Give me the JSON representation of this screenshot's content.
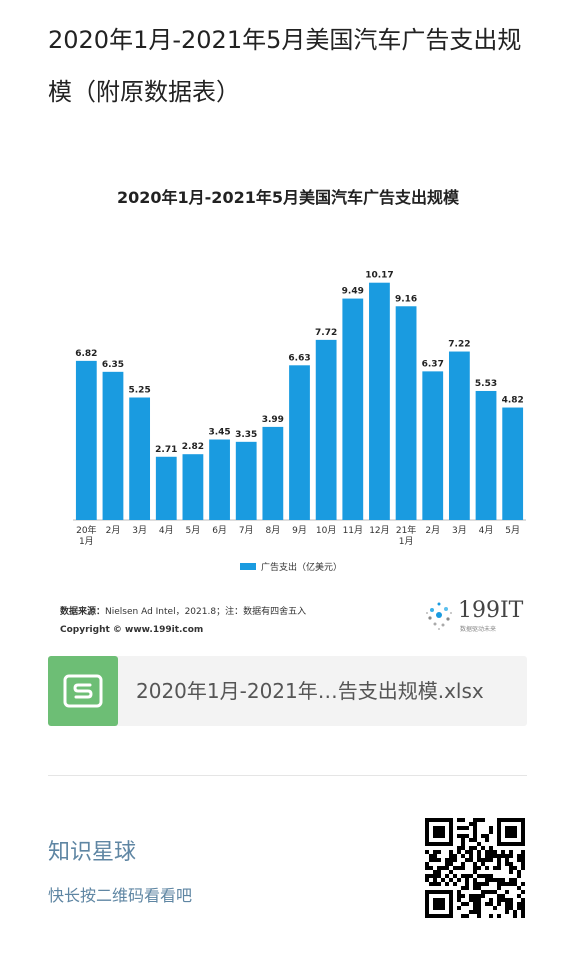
{
  "article": {
    "title": "2020年1月-2021年5月美国汽车广告支出规模（附原数据表）"
  },
  "chart_data": {
    "type": "bar",
    "title": "2020年1月-2021年5月美国汽车广告支出规模",
    "categories": [
      "20年1月",
      "2月",
      "3月",
      "4月",
      "5月",
      "6月",
      "7月",
      "8月",
      "9月",
      "10月",
      "11月",
      "12月",
      "21年1月",
      "2月",
      "3月",
      "4月",
      "5月"
    ],
    "series": [
      {
        "name": "广告支出（亿美元）",
        "values": [
          6.82,
          6.35,
          5.25,
          2.71,
          2.82,
          3.45,
          3.35,
          3.99,
          6.63,
          7.72,
          9.49,
          10.17,
          9.16,
          6.37,
          7.22,
          5.53,
          4.82
        ]
      }
    ],
    "ylim": [
      0,
      10.5
    ],
    "grid": false,
    "legend_position": "bottom",
    "bar_color": "#1a9be0",
    "data_labels": true
  },
  "source": {
    "label": "数据来源：",
    "text": "Nielsen Ad Intel，2021.8；注：数据有四舍五入",
    "copyright": "Copyright © www.199it.com"
  },
  "logo": {
    "text": "199IT",
    "subtitle": "数据驱动未来"
  },
  "attachment": {
    "icon": "spreadsheet-icon",
    "icon_letter": "S",
    "icon_color": "#6dbe75",
    "filename": "2020年1月-2021年…告支出规模.xlsx"
  },
  "footer": {
    "title": "知识星球",
    "subtitle": "快长按二维码看看吧",
    "accent_color": "#5f86a3"
  }
}
